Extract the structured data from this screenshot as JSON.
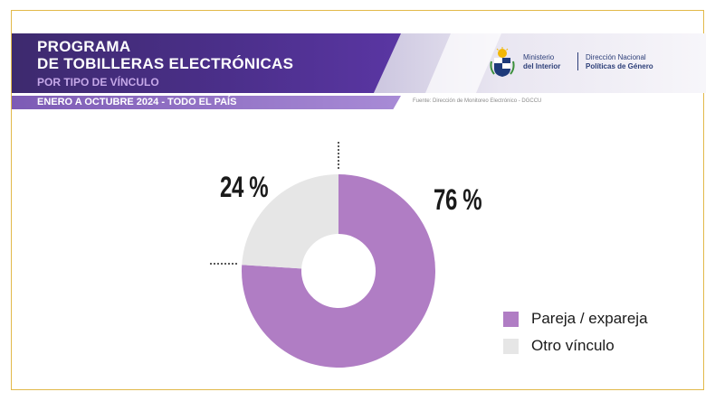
{
  "header": {
    "title": "PROGRAMA\nDE TOBILLERAS ELECTRÓNICAS",
    "subtitle": "POR TIPO DE VÍNCULO",
    "period": "ENERO A OCTUBRE 2024 - TODO EL PAÍS",
    "source": "Fuente: Dirección de Monitoreo Electrónico - DGCCU"
  },
  "logos": {
    "ministry_line1": "Ministerio",
    "ministry_line2": "del Interior",
    "direction_line1": "Dirección Nacional",
    "direction_line2": "Políticas de Género"
  },
  "colors": {
    "pareja": "#b07dc4",
    "otro": "#e6e6e6",
    "frame": "#e2b94a",
    "header": "#4b2f8a"
  },
  "chart_data": {
    "type": "pie",
    "donut": true,
    "categories": [
      "Pareja / expareja",
      "Otro vínculo"
    ],
    "values": [
      76,
      24
    ],
    "labels": [
      "76 %",
      "24 %"
    ],
    "legend_position": "bottom-right"
  }
}
